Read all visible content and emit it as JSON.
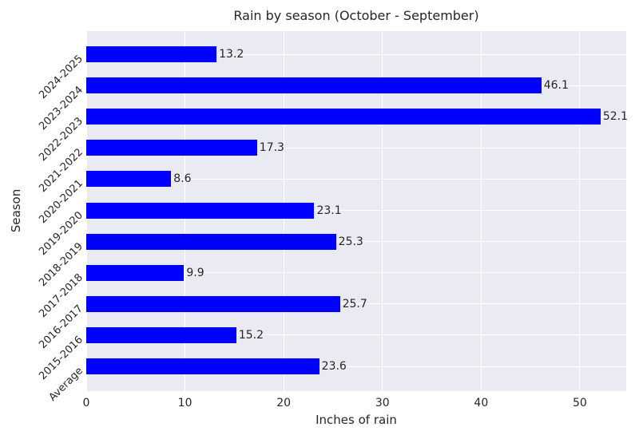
{
  "chart_data": {
    "type": "bar",
    "orientation": "horizontal",
    "title": "Rain by season (October - September)",
    "xlabel": "Inches of rain",
    "ylabel": "Season",
    "categories": [
      "2024-2025",
      "2023-2024",
      "2022-2023",
      "2021-2022",
      "2020-2021",
      "2019-2020",
      "2018-2019",
      "2017-2018",
      "2016-2017",
      "2015-2016",
      "Average"
    ],
    "values": [
      13.2,
      46.1,
      52.1,
      17.3,
      8.6,
      23.1,
      25.3,
      9.9,
      25.7,
      15.2,
      23.6
    ],
    "value_labels": [
      "13.2",
      "46.1",
      "52.1",
      "17.3",
      "8.6",
      "23.1",
      "25.3",
      "9.9",
      "25.7",
      "15.2",
      "23.6"
    ],
    "xticks": [
      "0",
      "10",
      "20",
      "30",
      "40",
      "50"
    ],
    "xtick_values": [
      0,
      10,
      20,
      30,
      40,
      50
    ],
    "xlim": [
      0,
      54.7
    ],
    "grid": true,
    "legend_position": "none",
    "colors": {
      "bar": "#0000ff",
      "plot_background": "#eaeaf2",
      "gridline": "#ffffff",
      "text": "#262626",
      "figure_background": "#ffffff"
    }
  }
}
